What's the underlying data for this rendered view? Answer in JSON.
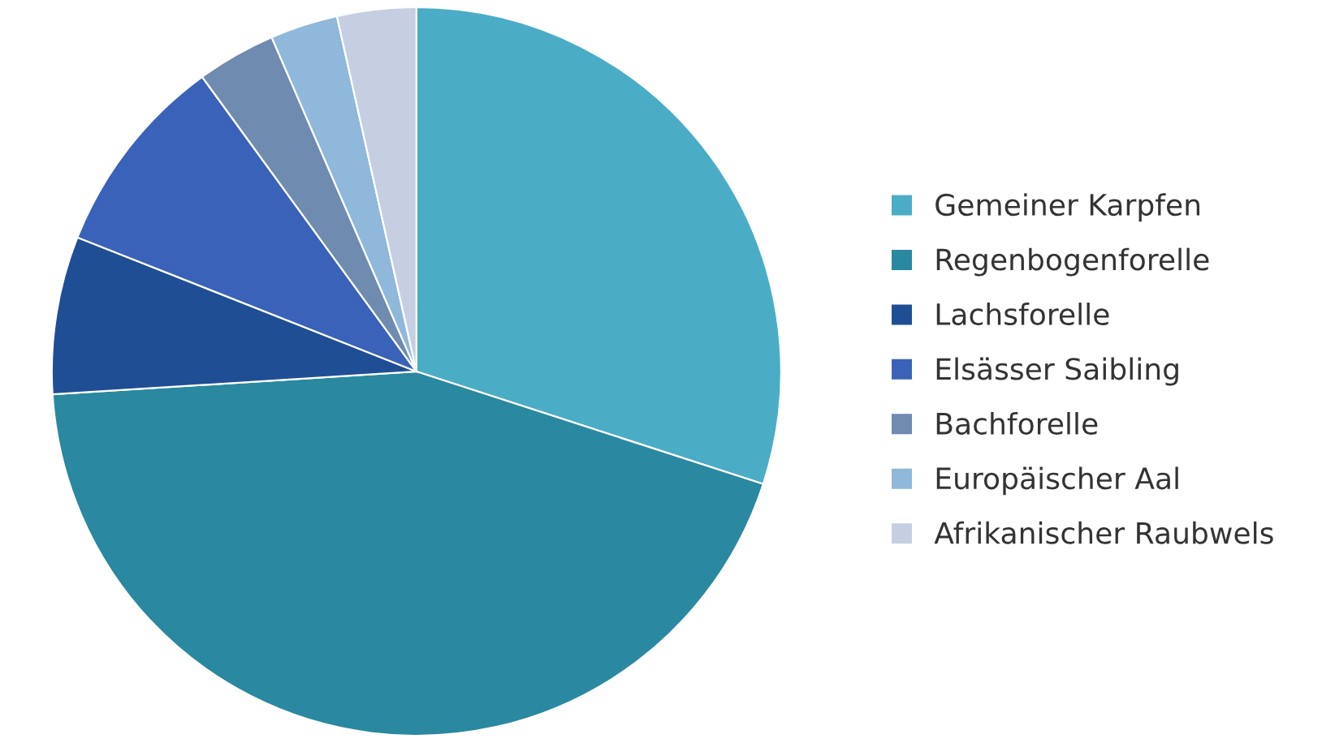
{
  "chart_data": {
    "type": "pie",
    "categories": [
      "Gemeiner Karpfen",
      "Regenbogenforelle",
      "Lachsforelle",
      "Elsässer Saibling",
      "Bachforelle",
      "Europäischer Aal",
      "Afrikanischer Raubwels"
    ],
    "values": [
      30,
      44,
      7,
      9,
      3.5,
      3,
      3.5
    ],
    "colors": [
      "#4bacc6",
      "#2a88a0",
      "#1f4e94",
      "#3a62b8",
      "#6f8bb0",
      "#8fb8da",
      "#c6cee2"
    ],
    "legend": "right"
  }
}
